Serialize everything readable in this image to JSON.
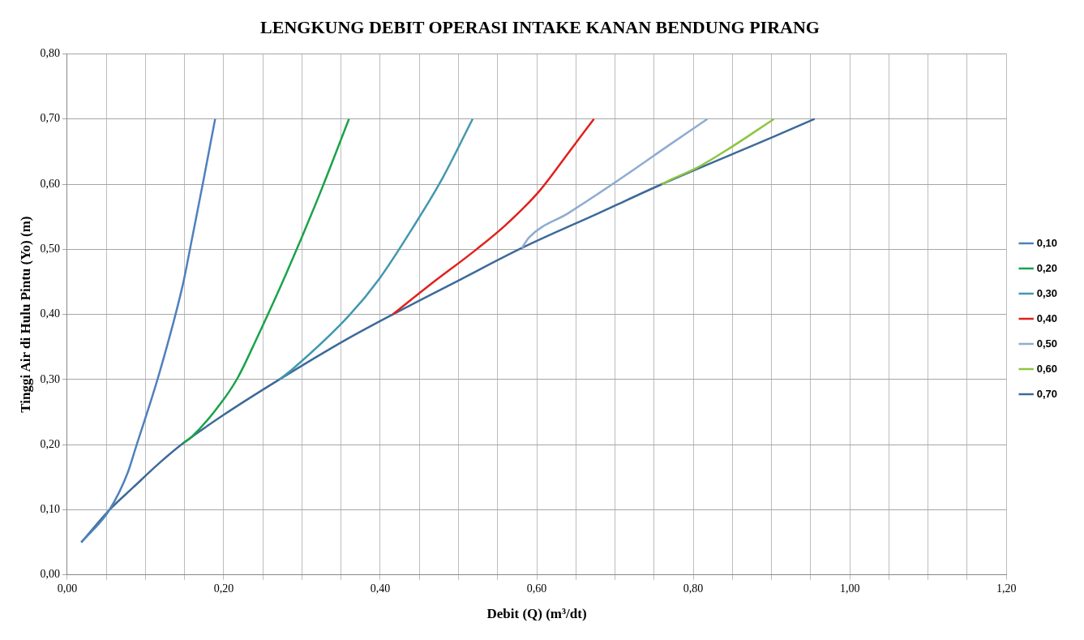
{
  "chart_data": {
    "type": "line",
    "title": "LENGKUNG DEBIT OPERASI INTAKE KANAN BENDUNG PIRANG",
    "xlabel": "Debit (Q) (m³/dt)",
    "ylabel": "Tinggi Air di Hulu Pintu (Yo) (m)",
    "xlim": [
      0,
      1.2
    ],
    "ylim": [
      0,
      0.8
    ],
    "xticks": [
      {
        "value": 0,
        "label": "0,00"
      },
      {
        "value": 0.05,
        "label": null
      },
      {
        "value": 0.1,
        "label": null
      },
      {
        "value": 0.15,
        "label": null
      },
      {
        "value": 0.2,
        "label": "0,20"
      },
      {
        "value": 0.25,
        "label": null
      },
      {
        "value": 0.3,
        "label": null
      },
      {
        "value": 0.35,
        "label": null
      },
      {
        "value": 0.4,
        "label": "0,40"
      },
      {
        "value": 0.45,
        "label": null
      },
      {
        "value": 0.5,
        "label": null
      },
      {
        "value": 0.55,
        "label": null
      },
      {
        "value": 0.6,
        "label": "0,60"
      },
      {
        "value": 0.65,
        "label": null
      },
      {
        "value": 0.7,
        "label": null
      },
      {
        "value": 0.75,
        "label": null
      },
      {
        "value": 0.8,
        "label": "0,80"
      },
      {
        "value": 0.85,
        "label": null
      },
      {
        "value": 0.9,
        "label": null
      },
      {
        "value": 0.95,
        "label": null
      },
      {
        "value": 1.0,
        "label": "1,00"
      },
      {
        "value": 1.05,
        "label": null
      },
      {
        "value": 1.1,
        "label": null
      },
      {
        "value": 1.15,
        "label": null
      },
      {
        "value": 1.2,
        "label": "1,20"
      }
    ],
    "yticks": [
      {
        "value": 0,
        "label": "0,00"
      },
      {
        "value": 0.1,
        "label": "0,10"
      },
      {
        "value": 0.2,
        "label": "0,20"
      },
      {
        "value": 0.3,
        "label": "0,30"
      },
      {
        "value": 0.4,
        "label": "0,40"
      },
      {
        "value": 0.5,
        "label": "0,50"
      },
      {
        "value": 0.6,
        "label": "0,60"
      },
      {
        "value": 0.7,
        "label": "0,70"
      },
      {
        "value": 0.8,
        "label": "0,80"
      }
    ],
    "grid": true,
    "legend": "right",
    "marker": "none",
    "series": [
      {
        "name": "0,10",
        "color": "#4f81bd",
        "x": [
          0.018,
          0.054,
          0.077,
          0.088,
          0.118,
          0.148,
          0.157,
          0.173,
          0.189
        ],
        "values": [
          0.05,
          0.1,
          0.156,
          0.197,
          0.311,
          0.447,
          0.501,
          0.599,
          0.7
        ]
      },
      {
        "name": "0,20",
        "color": "#1aa34a",
        "x": [
          0.148,
          0.16,
          0.199,
          0.218,
          0.241,
          0.28,
          0.322,
          0.36
        ],
        "values": [
          0.202,
          0.213,
          0.268,
          0.303,
          0.36,
          0.463,
          0.583,
          0.7
        ]
      },
      {
        "name": "0,30",
        "color": "#4198af",
        "x": [
          0.271,
          0.288,
          0.36,
          0.399,
          0.441,
          0.479,
          0.518
        ],
        "values": [
          0.3,
          0.316,
          0.398,
          0.455,
          0.532,
          0.608,
          0.7
        ]
      },
      {
        "name": "0,40",
        "color": "#e0211d",
        "x": [
          0.416,
          0.462,
          0.522,
          0.56,
          0.603,
          0.641,
          0.673
        ],
        "values": [
          0.4,
          0.444,
          0.499,
          0.537,
          0.589,
          0.649,
          0.7
        ]
      },
      {
        "name": "0,50",
        "color": "#8eacd0",
        "x": [
          0.581,
          0.59,
          0.641,
          0.709,
          0.768,
          0.818
        ],
        "values": [
          0.502,
          0.518,
          0.556,
          0.61,
          0.659,
          0.7
        ]
      },
      {
        "name": "0,60",
        "color": "#8cc641",
        "x": [
          0.76,
          0.773,
          0.803,
          0.845,
          0.903
        ],
        "values": [
          0.6,
          0.608,
          0.624,
          0.654,
          0.7
        ]
      },
      {
        "name": "0,70",
        "color": "#3d6a99",
        "x": [
          0.018,
          0.054,
          0.084,
          0.118,
          0.148,
          0.199,
          0.271,
          0.356,
          0.416,
          0.5,
          0.581,
          0.68,
          0.76,
          0.903,
          0.955
        ],
        "values": [
          0.05,
          0.1,
          0.134,
          0.172,
          0.202,
          0.245,
          0.3,
          0.361,
          0.4,
          0.452,
          0.502,
          0.556,
          0.6,
          0.673,
          0.7
        ]
      }
    ]
  }
}
